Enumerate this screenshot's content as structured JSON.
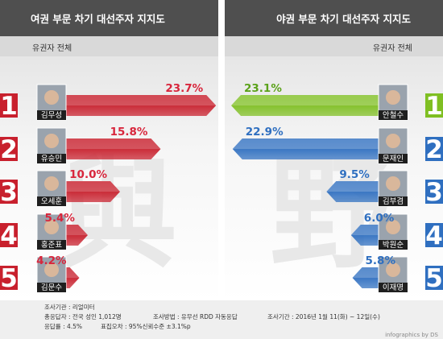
{
  "header": {
    "left_title": "여권 부문 차기 대선주자 지지도",
    "right_title": "야권 부문 차기 대선주자 지지도",
    "left_sub": "유권자 전체",
    "right_sub": "유권자 전체"
  },
  "chart_data": [
    {
      "type": "bar",
      "title": "여권 부문 차기 대선주자 지지도",
      "subtitle": "유권자 전체",
      "categories": [
        "김무성",
        "유승민",
        "오세훈",
        "홍준표",
        "김문수"
      ],
      "ranks": [
        "1",
        "2",
        "3",
        "4",
        "5"
      ],
      "values": [
        23.7,
        15.8,
        10.0,
        5.4,
        4.2
      ],
      "value_labels": [
        "23.7%",
        "15.8%",
        "10.0%",
        "5.4%",
        "4.2%"
      ],
      "colors": [
        "#c8202d",
        "#c8202d",
        "#c8202d",
        "#c8202d",
        "#c8202d"
      ],
      "label_colors": [
        "#d8263c",
        "#d8263c",
        "#d8263c",
        "#d8263c",
        "#d8263c"
      ]
    },
    {
      "type": "bar",
      "title": "야권 부문 차기 대선주자 지지도",
      "subtitle": "유권자 전체",
      "categories": [
        "안철수",
        "문재인",
        "김부겸",
        "박원순",
        "이재명"
      ],
      "ranks": [
        "1",
        "2",
        "3",
        "4",
        "5"
      ],
      "values": [
        23.1,
        22.9,
        9.5,
        6.0,
        5.8
      ],
      "value_labels": [
        "23.1%",
        "22.9%",
        "9.5%",
        "6.0%",
        "5.8%"
      ],
      "colors": [
        "#7fbf22",
        "#2f6fc0",
        "#2f6fc0",
        "#2f6fc0",
        "#2f6fc0"
      ],
      "label_colors": [
        "#5ba21a",
        "#2f6fc0",
        "#2f6fc0",
        "#2f6fc0",
        "#2f6fc0"
      ]
    }
  ],
  "footer": {
    "notes": [
      "조사기관 : 리얼미터",
      "총응답자 : 전국 성인 1,012명",
      "조사방법 : 유무선 RDD 자동응답",
      "조사기간 : 2016년 1월 11(화) ~ 12일(수)",
      "응답률 : 4.5%",
      "표집오차 : 95%신뢰수준 ±3.1%p"
    ],
    "credit": "infographics by DS"
  }
}
